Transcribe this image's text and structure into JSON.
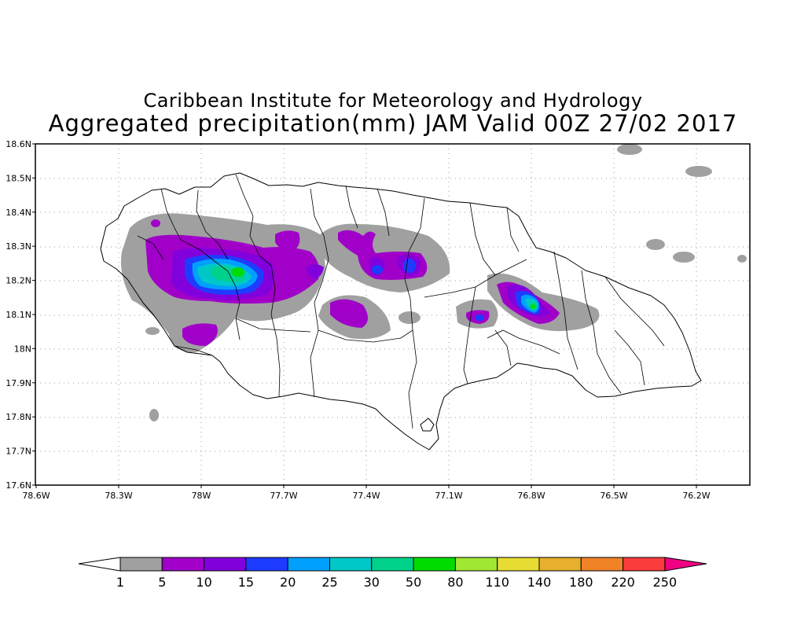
{
  "title": {
    "line1": "Caribbean Institute for Meteorology and Hydrology",
    "line2": "Aggregated precipitation(mm) JAM Valid 00Z 27/02 2017"
  },
  "axes": {
    "x_ticks": [
      "78.6W",
      "78.3W",
      "78W",
      "77.7W",
      "77.4W",
      "77.1W",
      "76.8W",
      "76.5W",
      "76.2W"
    ],
    "y_ticks": [
      "18.6N",
      "18.5N",
      "18.4N",
      "18.3N",
      "18.2N",
      "18.1N",
      "18N",
      "17.9N",
      "17.8N",
      "17.7N",
      "17.6N"
    ],
    "lon_range": [
      -78.6,
      -76.0
    ],
    "lat_range": [
      17.6,
      18.6
    ],
    "grid": "dotted"
  },
  "colorbar": {
    "levels": [
      "1",
      "5",
      "10",
      "15",
      "20",
      "25",
      "30",
      "50",
      "80",
      "110",
      "140",
      "180",
      "220",
      "250"
    ],
    "colors": [
      "#a0a0a0",
      "#a000c8",
      "#8200dc",
      "#1e3cff",
      "#00a0ff",
      "#00c8c8",
      "#00d28c",
      "#00dc00",
      "#a0e632",
      "#e6dc32",
      "#e6af2d",
      "#f08228",
      "#fa3c3c",
      "#f00082"
    ]
  }
}
